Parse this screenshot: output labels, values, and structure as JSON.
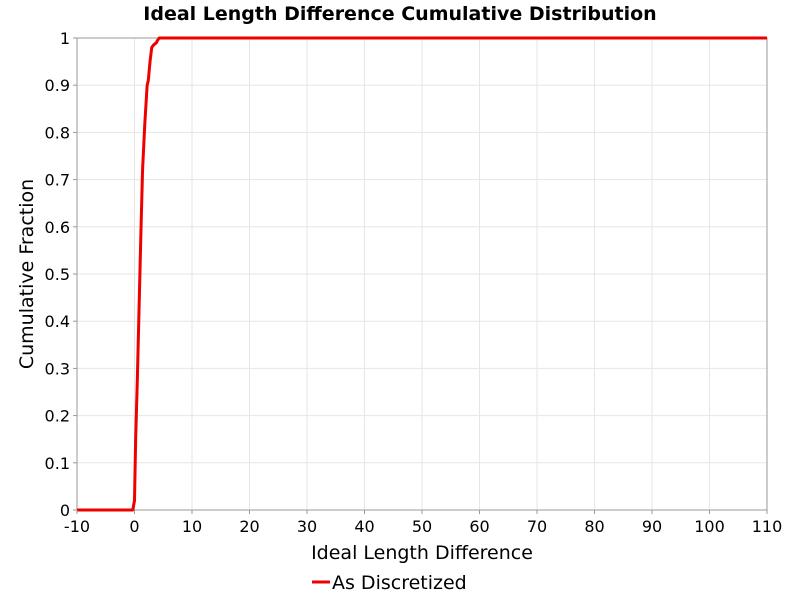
{
  "chart_data": {
    "type": "line",
    "title": "Ideal Length Difference Cumulative Distribution",
    "xlabel": "Ideal Length Difference",
    "ylabel": "Cumulative Fraction",
    "xlim": [
      -10,
      110
    ],
    "ylim": [
      0,
      1
    ],
    "x_ticks": [
      "-10",
      "0",
      "10",
      "20",
      "30",
      "40",
      "50",
      "60",
      "70",
      "80",
      "90",
      "100",
      "110"
    ],
    "y_ticks": [
      "0",
      "0.1",
      "0.2",
      "0.3",
      "0.4",
      "0.5",
      "0.6",
      "0.7",
      "0.8",
      "0.9",
      "1"
    ],
    "grid": true,
    "legend_position": "bottom-center",
    "series": [
      {
        "name": "As Discretized",
        "color": "#ee0000",
        "x": [
          -10,
          -0.3,
          0,
          0.2,
          0.5,
          0.8,
          1.1,
          1.4,
          1.8,
          2.2,
          2.4,
          2.7,
          3.0,
          3.3,
          3.8,
          4.0,
          4.3,
          110
        ],
        "y": [
          0,
          0,
          0.02,
          0.15,
          0.28,
          0.43,
          0.58,
          0.72,
          0.82,
          0.9,
          0.91,
          0.95,
          0.98,
          0.985,
          0.99,
          0.995,
          1.0,
          1.0
        ]
      }
    ]
  }
}
